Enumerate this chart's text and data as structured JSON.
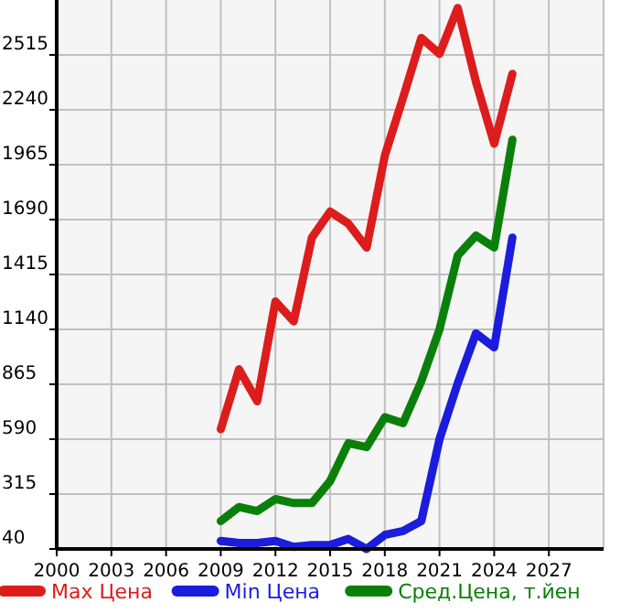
{
  "chart_data": {
    "type": "line",
    "x": [
      2009,
      2010,
      2011,
      2012,
      2013,
      2014,
      2015,
      2016,
      2017,
      2018,
      2019,
      2020,
      2021,
      2022,
      2023,
      2024,
      2025
    ],
    "series": [
      {
        "name": "Max Цена",
        "color": "#dd1c1c",
        "values": [
          640,
          940,
          780,
          1280,
          1180,
          1600,
          1730,
          1670,
          1550,
          2010,
          2300,
          2600,
          2520,
          2750,
          2380,
          2070,
          2420
        ]
      },
      {
        "name": "Min Цена",
        "color": "#1c1cdd",
        "values": [
          80,
          70,
          70,
          80,
          50,
          60,
          60,
          90,
          40,
          110,
          130,
          180,
          590,
          870,
          1120,
          1050,
          1600
        ]
      },
      {
        "name": "Сред.Цена, т.йен",
        "color": "#0a800a",
        "values": [
          180,
          250,
          230,
          290,
          270,
          270,
          380,
          570,
          550,
          700,
          670,
          880,
          1140,
          1510,
          1610,
          1550,
          2090
        ]
      }
    ],
    "xlim": [
      2000,
      2030
    ],
    "xticks": [
      2000,
      2003,
      2006,
      2009,
      2012,
      2015,
      2018,
      2021,
      2024,
      2027
    ],
    "ylim": [
      40,
      2790
    ],
    "yticks": [
      40,
      315,
      590,
      865,
      1140,
      1415,
      1690,
      1965,
      2240,
      2515
    ],
    "grid": true,
    "legend": "bottom",
    "marker": "none",
    "line_style": "solid"
  }
}
